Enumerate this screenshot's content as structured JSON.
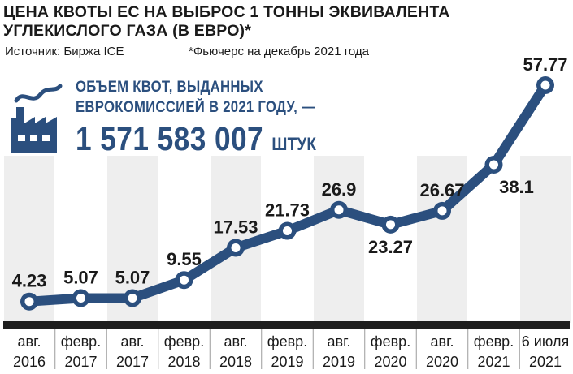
{
  "header": {
    "title_line1": "ЦЕНА КВОТЫ ЕС НА ВЫБРОС 1 ТОННЫ ЭКВИВАЛЕНТА",
    "title_line2": "УГЛЕКИСЛОГО ГАЗА (В ЕВРО)*",
    "source": "Источник: Биржа ICE",
    "footnote": "*Фьючерс на декабрь 2021 года"
  },
  "callout": {
    "line1": "ОБЪЕМ КВОТ, ВЫДАННЫХ",
    "line2": "ЕВРОКОМИССИЕЙ В 2021 ГОДУ, —",
    "big_number": "1 571 583 007",
    "unit": "ШТУК",
    "icon": "factory-icon"
  },
  "colors": {
    "line": "#2b4f7e",
    "band": "#eeeeee",
    "axis_bar": "#1e1e1e"
  },
  "chart_data": {
    "type": "line",
    "title": "ЦЕНА КВОТЫ ЕС НА ВЫБРОС 1 ТОННЫ ЭКВИВАЛЕНТА УГЛЕКИСЛОГО ГАЗА (В ЕВРО)*",
    "categories": [
      [
        "авг.",
        "2016"
      ],
      [
        "февр.",
        "2017"
      ],
      [
        "авг.",
        "2017"
      ],
      [
        "февр.",
        "2018"
      ],
      [
        "авг.",
        "2018"
      ],
      [
        "февр.",
        "2019"
      ],
      [
        "авг.",
        "2019"
      ],
      [
        "февр.",
        "2020"
      ],
      [
        "авг.",
        "2020"
      ],
      [
        "февр.",
        "2021"
      ],
      [
        "6 июля",
        "2021"
      ]
    ],
    "values": [
      4.23,
      5.07,
      5.07,
      9.55,
      17.53,
      21.73,
      26.9,
      23.27,
      26.67,
      38.1,
      57.77
    ],
    "value_labels": [
      "4.23",
      "5.07",
      "5.07",
      "9.55",
      "17.53",
      "21.73",
      "26.9",
      "23.27",
      "26.67",
      "38.1",
      "57.77"
    ],
    "label_position": [
      "above",
      "above",
      "above",
      "above",
      "above",
      "above",
      "above",
      "below",
      "above",
      "below-left",
      "above"
    ],
    "ylim": [
      0,
      60
    ],
    "grid": false,
    "xlabel": "",
    "ylabel": ""
  }
}
